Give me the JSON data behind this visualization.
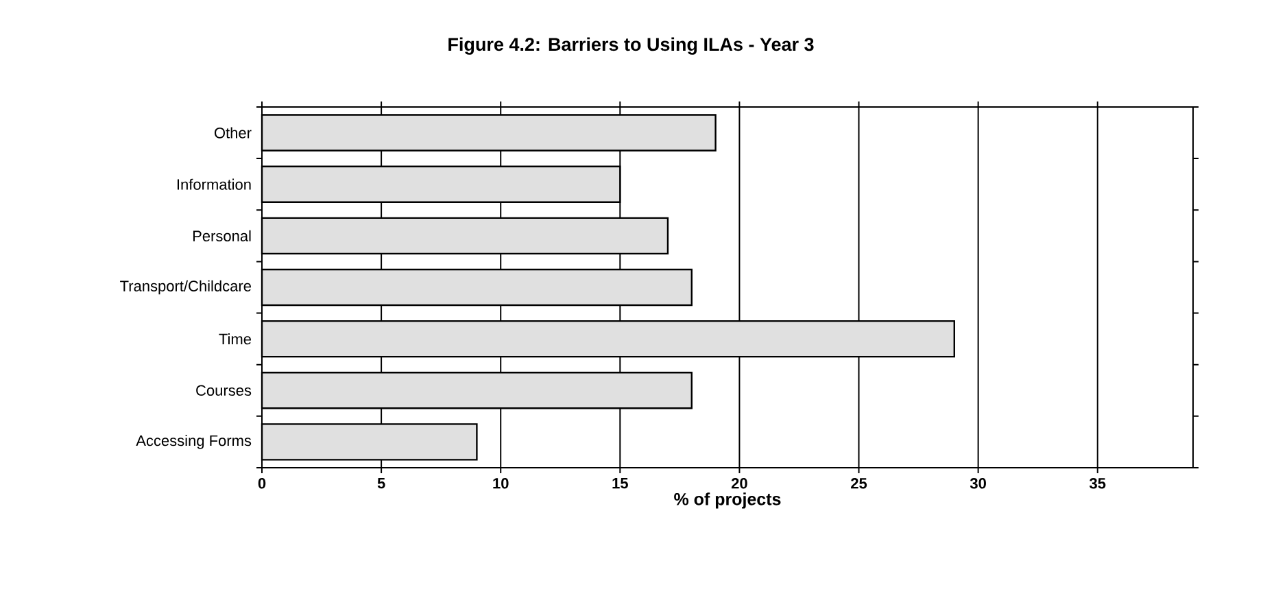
{
  "chart_data": {
    "type": "bar",
    "orientation": "horizontal",
    "title": "Figure 4.2: Barriers to Using ILAs  - Year 3",
    "xlabel": "% of projects",
    "categories": [
      "Other",
      "Information",
      "Personal",
      "Transport/Childcare",
      "Time",
      "Courses",
      "Accessing Forms"
    ],
    "values": [
      19,
      15,
      17,
      18,
      29,
      18,
      9
    ],
    "color": "#e0e0e0",
    "xlim": [
      0,
      39
    ],
    "xticks": [
      0,
      5,
      10,
      15,
      20,
      25,
      30,
      35
    ],
    "grid": "x"
  }
}
